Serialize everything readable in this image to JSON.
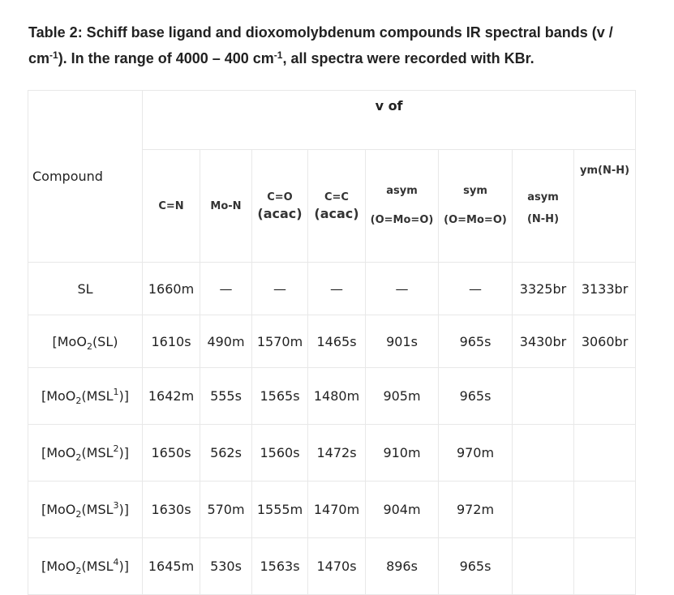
{
  "caption": {
    "line1": "Table 2: Schiff base ligand and dioxomolybdenum compounds IR spectral bands (v /",
    "line2_a": "cm",
    "line2_sup1": "-1",
    "line2_b": "). In the range of 4000 – 400 cm",
    "line2_sup2": "-1",
    "line2_c": ", all spectra were recorded with KBr."
  },
  "header": {
    "compound": "Compound",
    "group": "v of",
    "columns": {
      "cn": "C=N",
      "mon": "Mo-N",
      "co_top": "C=O",
      "co_bottom": "(acac)",
      "cc_top": "C=C",
      "cc_bottom": "(acac)",
      "asym_moo_top": "asym",
      "asym_moo_bottom": "(O=Mo=O)",
      "sym_moo_top": "sym",
      "sym_moo_bottom": "(O=Mo=O)",
      "asym_nh_top": "asym",
      "asym_nh_bottom": "(N-H)",
      "sym_nh": "ym(N-H)"
    }
  },
  "rows": [
    {
      "compound": {
        "pre": "SL",
        "sub": "",
        "mid": "",
        "sup": "",
        "post": ""
      },
      "values": [
        "1660m",
        "—",
        "—",
        "—",
        "—",
        "—",
        "3325br",
        "3133br"
      ]
    },
    {
      "compound": {
        "pre": "[MoO",
        "sub": "2",
        "mid": "(SL)",
        "sup": "",
        "post": ""
      },
      "values": [
        "1610s",
        "490m",
        "1570m",
        "1465s",
        "901s",
        "965s",
        "3430br",
        "3060br"
      ]
    },
    {
      "compound": {
        "pre": "[MoO",
        "sub": "2",
        "mid": "(MSL",
        "sup": "1",
        "post": ")]"
      },
      "values": [
        "1642m",
        "555s",
        "1565s",
        "1480m",
        "905m",
        "965s",
        "",
        ""
      ]
    },
    {
      "compound": {
        "pre": "[MoO",
        "sub": "2",
        "mid": "(MSL",
        "sup": "2",
        "post": ")]"
      },
      "values": [
        "1650s",
        "562s",
        "1560s",
        "1472s",
        "910m",
        "970m",
        "",
        ""
      ]
    },
    {
      "compound": {
        "pre": "[MoO",
        "sub": "2",
        "mid": "(MSL",
        "sup": "3",
        "post": ")]"
      },
      "values": [
        "1630s",
        "570m",
        "1555m",
        "1470m",
        "904m",
        "972m",
        "",
        ""
      ]
    },
    {
      "compound": {
        "pre": "[MoO",
        "sub": "2",
        "mid": "(MSL",
        "sup": "4",
        "post": ")]"
      },
      "values": [
        "1645m",
        "530s",
        "1563s",
        "1470s",
        "896s",
        "965s",
        "",
        ""
      ]
    }
  ]
}
